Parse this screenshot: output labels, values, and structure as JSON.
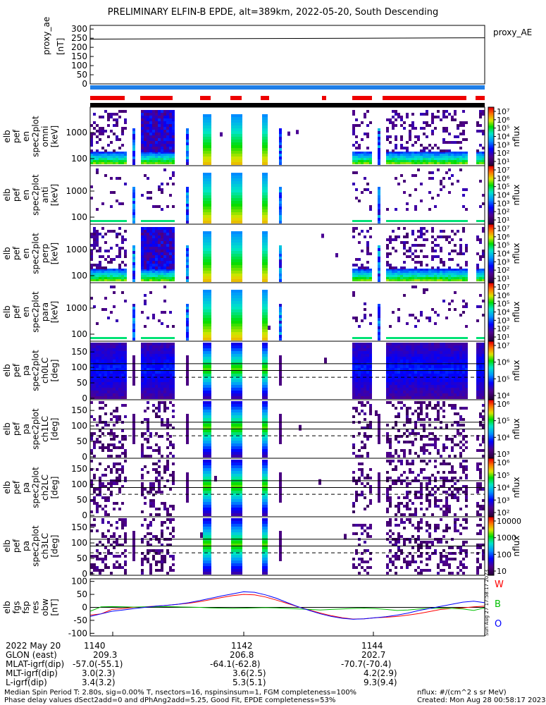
{
  "title": "PRELIMINARY ELFIN-B EPDE, alt=389km, 2022-05-20, South Descending",
  "chart_data": [
    {
      "type": "line",
      "panel": "proxy_ae",
      "ylabel_lines": [
        "proxy_ae",
        "[nT]"
      ],
      "legend": "proxy_AE",
      "yticks": [
        "300",
        "250",
        "200",
        "150",
        "100",
        "50",
        "0"
      ],
      "ylim": [
        0,
        320
      ],
      "series": [
        {
          "name": "proxy_AE",
          "x_min": [
            1139.6,
            1145.6
          ],
          "values": [
            245,
            252
          ]
        }
      ]
    },
    {
      "type": "heatmap",
      "panel": "elb pef en spec2plot omni",
      "ylabel_lines": [
        "elb",
        "pef",
        "en",
        "spec2plot",
        "omni",
        "[keV]"
      ],
      "yticks": [
        "1000",
        "100"
      ],
      "colorbar_label": "nflux",
      "colorbar_ticks": [
        "10⁷",
        "10⁶",
        "10⁵",
        "10⁴",
        "10³",
        "10²",
        "10¹"
      ]
    },
    {
      "type": "heatmap",
      "panel": "elb pef en spec2plot anti",
      "ylabel_lines": [
        "elb",
        "pef",
        "en",
        "spec2plot",
        "anti",
        "[keV]"
      ],
      "yticks": [
        "1000",
        "100"
      ],
      "colorbar_label": "nflux",
      "colorbar_ticks": [
        "10⁷",
        "10⁶",
        "10⁵",
        "10⁴",
        "10³",
        "10²",
        "10¹"
      ]
    },
    {
      "type": "heatmap",
      "panel": "elb pef en spec2plot perp",
      "ylabel_lines": [
        "elb",
        "pef",
        "en",
        "spec2plot",
        "perp",
        "[keV]"
      ],
      "yticks": [
        "1000",
        "100"
      ],
      "colorbar_label": "nflux",
      "colorbar_ticks": [
        "10⁷",
        "10⁶",
        "10⁵",
        "10⁴",
        "10³",
        "10²",
        "10¹"
      ]
    },
    {
      "type": "heatmap",
      "panel": "elb pef en spec2plot para",
      "ylabel_lines": [
        "elb",
        "pef",
        "en",
        "spec2plot",
        "para",
        "[keV]"
      ],
      "yticks": [
        "1000",
        "100"
      ],
      "colorbar_label": "nflux",
      "colorbar_ticks": [
        "10⁷",
        "10⁶",
        "10⁵",
        "10⁴",
        "10³",
        "10²",
        "10¹"
      ]
    },
    {
      "type": "heatmap",
      "panel": "elb pef pa spec2plot ch0LC",
      "ylabel_lines": [
        "elb",
        "pef",
        "pa",
        "spec2plot",
        "ch0LC",
        "[deg]"
      ],
      "yticks": [
        "150",
        "100",
        "50",
        "0"
      ],
      "colorbar_label": "nflux",
      "colorbar_ticks": [
        "10⁷",
        "10⁶",
        "10⁵",
        "10⁴"
      ]
    },
    {
      "type": "heatmap",
      "panel": "elb pef pa spec2plot ch1LC",
      "ylabel_lines": [
        "elb",
        "pef",
        "pa",
        "spec2plot",
        "ch1LC",
        "[deg]"
      ],
      "yticks": [
        "150",
        "100",
        "50",
        "0"
      ],
      "colorbar_label": "nflux",
      "colorbar_ticks": [
        "10⁶",
        "10⁵",
        "10⁴",
        "10³"
      ]
    },
    {
      "type": "heatmap",
      "panel": "elb pef pa spec2plot ch2LC",
      "ylabel_lines": [
        "elb",
        "pef",
        "pa",
        "spec2plot",
        "ch2LC",
        "[deg]"
      ],
      "yticks": [
        "150",
        "100",
        "50",
        "0"
      ],
      "colorbar_label": "nflux",
      "colorbar_ticks": [
        "10⁶",
        "10⁵",
        "10⁴",
        "10³",
        "10²"
      ]
    },
    {
      "type": "heatmap",
      "panel": "elb pef pa spec2plot ch3LC",
      "ylabel_lines": [
        "elb",
        "pef",
        "pa",
        "spec2plot",
        "ch3LC",
        "[deg]"
      ],
      "yticks": [
        "150",
        "100",
        "50",
        "0"
      ],
      "colorbar_label": "nflux",
      "colorbar_ticks": [
        "10000",
        "1000",
        "100",
        "10"
      ]
    },
    {
      "type": "line",
      "panel": "elb fgs fsp res obw",
      "ylabel_lines": [
        "elb",
        "fgs",
        "fsp",
        "res",
        "obw",
        "[nT]"
      ],
      "yticks": [
        "100",
        "50",
        "0",
        "-50",
        "-100"
      ],
      "ylim": [
        -110,
        110
      ],
      "legend": [
        {
          "name": "W",
          "color": "#ff0000"
        },
        {
          "name": "B",
          "color": "#00c000"
        },
        {
          "name": "O",
          "color": "#0000ff"
        }
      ],
      "series": [
        {
          "name": "W",
          "color": "#ff0000",
          "values": [
            -30,
            -25,
            -8,
            -5,
            0,
            2,
            5,
            8,
            12,
            16,
            22,
            30,
            38,
            45,
            50,
            48,
            40,
            28,
            15,
            2,
            -10,
            -22,
            -32,
            -40,
            -45,
            -44,
            -40,
            -38,
            -35,
            -30,
            -24,
            -16,
            -8,
            -4,
            -2,
            2,
            5
          ]
        },
        {
          "name": "B",
          "color": "#00c000",
          "values": [
            -15,
            2,
            3,
            2,
            1,
            2,
            2,
            3,
            2,
            1,
            0,
            -2,
            -3,
            -4,
            -3,
            -2,
            -1,
            -2,
            -4,
            -6,
            -8,
            -10,
            -8,
            -6,
            -4,
            -3,
            -5,
            -8,
            -12,
            -10,
            -6,
            -4,
            -3,
            -4,
            -6,
            -12,
            -2
          ]
        },
        {
          "name": "O",
          "color": "#0000ff",
          "values": [
            -35,
            -25,
            -15,
            -10,
            -5,
            0,
            5,
            8,
            12,
            18,
            26,
            35,
            44,
            52,
            60,
            58,
            48,
            35,
            18,
            2,
            -12,
            -25,
            -35,
            -42,
            -46,
            -44,
            -40,
            -36,
            -30,
            -22,
            -12,
            -4,
            4,
            12,
            20,
            24,
            18
          ]
        }
      ]
    }
  ],
  "x_ticks": [
    "1140",
    "1142",
    "1144"
  ],
  "ephemeris": {
    "rows": [
      {
        "label": "2022 May 20",
        "vals": [
          "1140",
          "1142",
          "1144"
        ]
      },
      {
        "label": "GLON (east)",
        "vals": [
          "209.3",
          "206.8",
          "202.7"
        ]
      },
      {
        "label": "MLAT-igrf(dip)",
        "vals": [
          "-57.0(-55.1)",
          "-64.1(-62.8)",
          "-70.7(-70.4)"
        ]
      },
      {
        "label": "MLT-igrf(dip)",
        "vals": [
          "3.0(2.3)",
          "3.6(2.5)",
          "4.2(2.9)"
        ]
      },
      {
        "label": "L-igrf(dip)",
        "vals": [
          "3.4(3.2)",
          "5.3(5.1)",
          "9.3(9.4)"
        ]
      }
    ]
  },
  "footer": {
    "line1": "Median Spin Period T: 2.80s, sig=0.00% T, nsectors=16, nspinsinsum=1, FGM completeness=100%",
    "line2": "Phase delay values dSect2add=0 and dPhAng2add=5.25, Good Fit, EPDE completeness=53%",
    "right1": "nflux: #/(cm^2 s sr MeV)",
    "right2": "Created: Mon Aug 28 00:58:17 2023",
    "vertical_stamp": "Sun Aug 27 17:58:17 2023"
  },
  "colors": {
    "red_bar": "#ee0000",
    "blue_bar": "#1f7fe8",
    "black_bar": "#000000"
  }
}
